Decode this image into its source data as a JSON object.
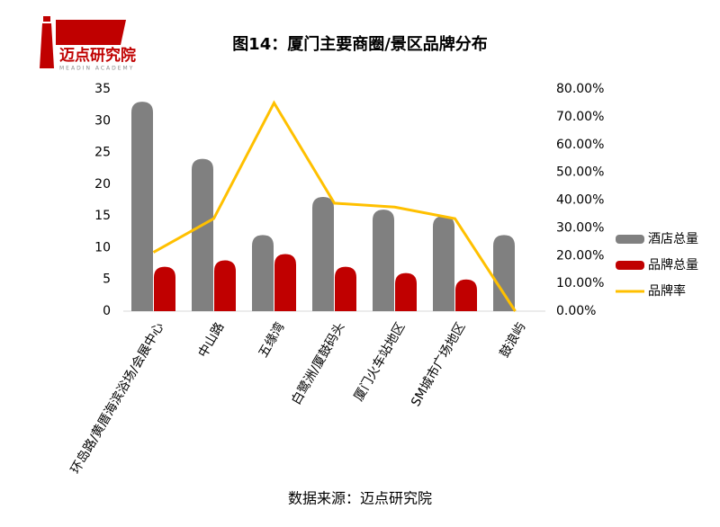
{
  "logo": {
    "name": "迈点研究院",
    "tagline": "MEADIN ACADEMY"
  },
  "chart_data": {
    "type": "bar-line",
    "title": "图14：厦门主要商圈/景区品牌分布",
    "categories": [
      "环岛路/黄厝海滨浴场/会展中心",
      "中山路",
      "五缘湾",
      "白鹭洲/厦鼓码头",
      "厦门火车站地区",
      "SM城市广场地区",
      "鼓浪屿"
    ],
    "series": [
      {
        "name": "酒店总量",
        "color": "#808080",
        "kind": "bar",
        "values": [
          33,
          24,
          12,
          18,
          16,
          15,
          12
        ]
      },
      {
        "name": "品牌总量",
        "color": "#c00000",
        "kind": "bar",
        "values": [
          7,
          8,
          9,
          7,
          6,
          5,
          0
        ]
      },
      {
        "name": "品牌率",
        "color": "#ffc000",
        "kind": "line",
        "axis": "y2",
        "values": [
          21.21,
          33.33,
          75,
          38.89,
          37.5,
          33.33,
          0
        ]
      }
    ],
    "ylim": [
      0,
      35
    ],
    "yticks": [
      0,
      5,
      10,
      15,
      20,
      25,
      30,
      35
    ],
    "y2lim": [
      0,
      80
    ],
    "y2ticks": [
      {
        "value": 0,
        "label": "0.00%"
      },
      {
        "value": 10,
        "label": "10.00%"
      },
      {
        "value": 20,
        "label": "20.00%"
      },
      {
        "value": 30,
        "label": "30.00%"
      },
      {
        "value": 40,
        "label": "40.00%"
      },
      {
        "value": 50,
        "label": "50.00%"
      },
      {
        "value": 60,
        "label": "60.00%"
      },
      {
        "value": 70,
        "label": "70.00%"
      },
      {
        "value": 80,
        "label": "80.00%"
      }
    ],
    "legend": "right",
    "source": "数据来源：迈点研究院"
  }
}
